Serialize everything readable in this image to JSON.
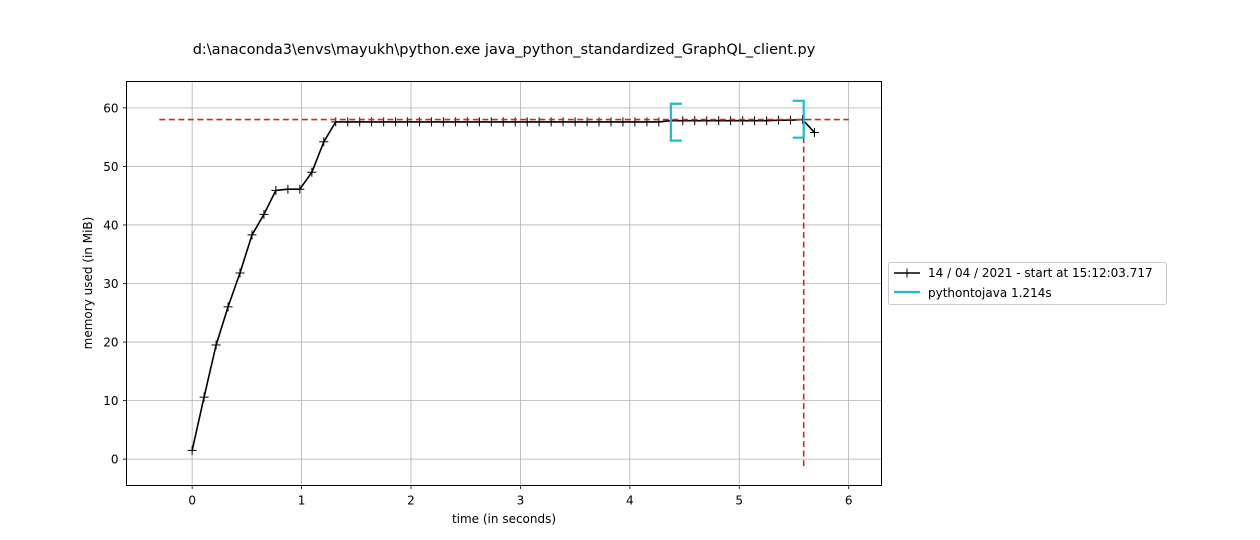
{
  "chart_data": {
    "type": "line",
    "title": "d:\\anaconda3\\envs\\mayukh\\python.exe java_python_standardized_GraphQL_client.py",
    "xlabel": "time (in seconds)",
    "ylabel": "memory used (in MiB)",
    "xlim": [
      -0.6,
      6.3
    ],
    "ylim": [
      -4.5,
      64.5
    ],
    "xticks": [
      0,
      1,
      2,
      3,
      4,
      5,
      6
    ],
    "yticks": [
      0,
      10,
      20,
      30,
      40,
      50,
      60
    ],
    "grid": true,
    "legend_position": "right",
    "series": [
      {
        "name": "14 / 04 / 2021 - start at 15:12:03.717",
        "color": "#000000",
        "marker": "+",
        "x": [
          0.0,
          0.109,
          0.219,
          0.328,
          0.437,
          0.547,
          0.656,
          0.765,
          0.875,
          0.984,
          1.094,
          1.203,
          1.312,
          1.422,
          1.531,
          1.64,
          1.75,
          1.859,
          1.968,
          2.078,
          2.187,
          2.296,
          2.406,
          2.515,
          2.625,
          2.734,
          2.843,
          2.953,
          3.062,
          3.171,
          3.281,
          3.39,
          3.5,
          3.609,
          3.718,
          3.828,
          3.937,
          4.046,
          4.156,
          4.265,
          4.375,
          4.484,
          4.593,
          4.703,
          4.812,
          4.921,
          5.031,
          5.14,
          5.25,
          5.359,
          5.468,
          5.578,
          5.687
        ],
        "y": [
          1.5,
          10.6,
          19.5,
          26.0,
          31.8,
          38.3,
          41.8,
          45.9,
          46.1,
          46.1,
          49.0,
          54.2,
          57.6,
          57.6,
          57.6,
          57.6,
          57.6,
          57.6,
          57.6,
          57.6,
          57.6,
          57.6,
          57.6,
          57.6,
          57.6,
          57.6,
          57.6,
          57.6,
          57.6,
          57.6,
          57.6,
          57.6,
          57.6,
          57.6,
          57.6,
          57.6,
          57.6,
          57.6,
          57.6,
          57.6,
          57.8,
          57.8,
          57.8,
          57.8,
          57.8,
          57.8,
          57.8,
          57.8,
          57.8,
          57.9,
          57.9,
          58.0,
          55.8
        ]
      }
    ],
    "brackets": {
      "name": "pythontojava 1.214s",
      "color": "#17becf",
      "start_x": 4.375,
      "end_x": 5.589,
      "start_y_range": [
        54.4,
        60.7
      ],
      "end_y_range": [
        54.9,
        61.2
      ]
    },
    "max_markers": {
      "color": "#d62728",
      "max_memory": 58.0,
      "time_of_max": 5.589,
      "hline_xrange": [
        -0.3,
        6.0
      ],
      "vline_yrange": [
        -1.2,
        58.0
      ]
    }
  }
}
